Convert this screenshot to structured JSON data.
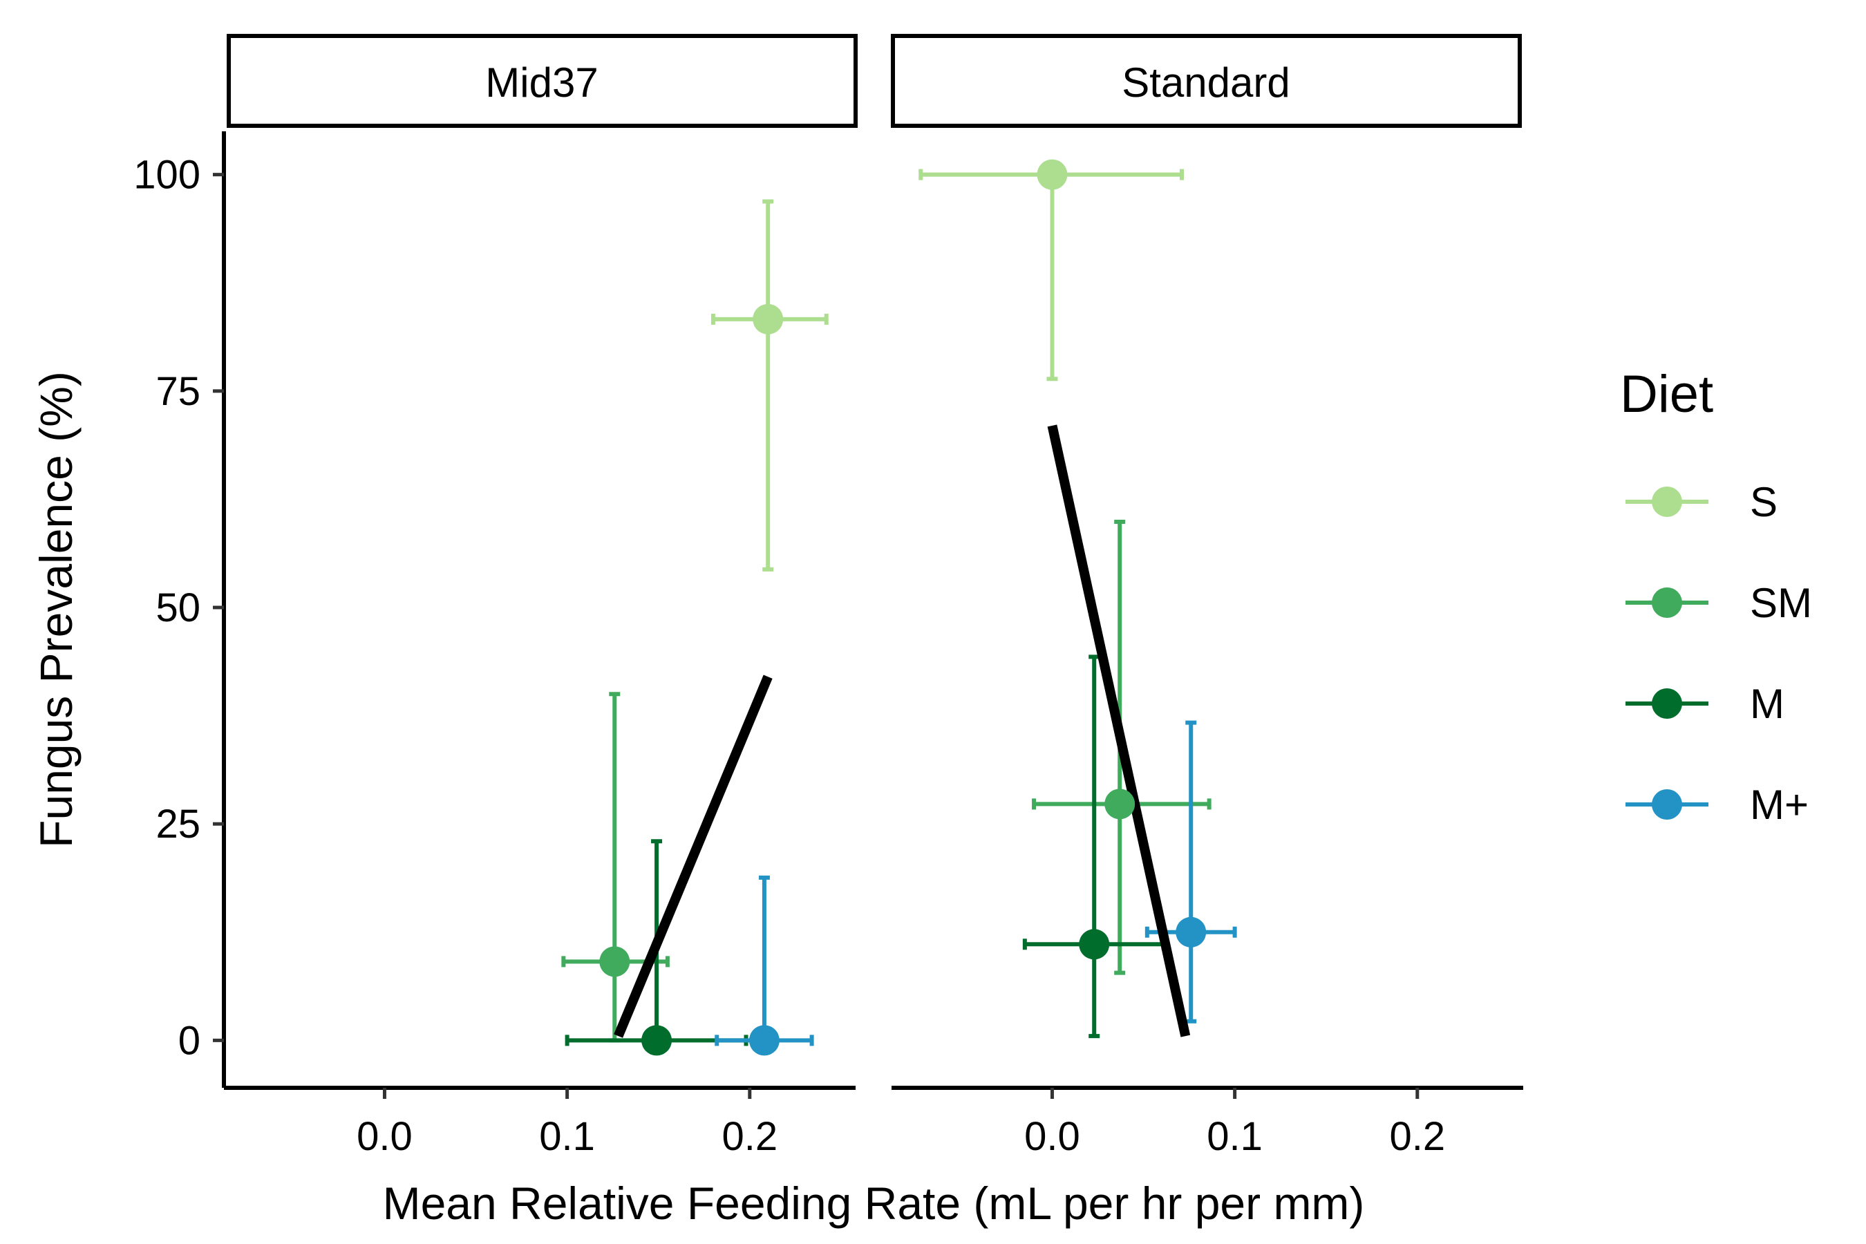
{
  "chart_data": {
    "type": "scatter",
    "xlabel": "Mean Relative Feeding Rate (mL per hr per mm)",
    "ylabel": "Fungus Prevalence (%)",
    "xlim": [
      -0.088,
      0.258
    ],
    "ylim": [
      -5,
      105
    ],
    "x_ticks": [
      "0.0",
      "0.1",
      "0.2"
    ],
    "x_tick_values": [
      0.0,
      0.1,
      0.2
    ],
    "y_ticks": [
      "0",
      "25",
      "50",
      "75",
      "100"
    ],
    "y_tick_values": [
      0,
      25,
      50,
      75,
      100
    ],
    "grid": false,
    "legend": {
      "title": "Diet",
      "position": "right",
      "entries": [
        {
          "key": "S",
          "label": "S",
          "color": "#ADDE8F"
        },
        {
          "key": "SM",
          "label": "SM",
          "color": "#41AB5D"
        },
        {
          "key": "M",
          "label": "M",
          "color": "#006D2C"
        },
        {
          "key": "M+",
          "label": "M+",
          "color": "#2293C4"
        }
      ]
    },
    "panels": [
      {
        "label": "Mid37",
        "points": [
          {
            "diet": "S",
            "x": 0.21,
            "y": 83.3,
            "xmin": 0.18,
            "xmax": 0.242,
            "ymin": 54.4,
            "ymax": 96.9
          },
          {
            "diet": "SM",
            "x": 0.126,
            "y": 9.1,
            "xmin": 0.098,
            "xmax": 0.155,
            "ymin": 0.0,
            "ymax": 40.0
          },
          {
            "diet": "M",
            "x": 0.149,
            "y": 0.0,
            "xmin": 0.1,
            "xmax": 0.198,
            "ymin": 0.0,
            "ymax": 23.0
          },
          {
            "diet": "M+",
            "x": 0.208,
            "y": 0.0,
            "xmin": 0.182,
            "xmax": 0.234,
            "ymin": 0.0,
            "ymax": 18.8
          }
        ],
        "fit": {
          "x": [
            0.128,
            0.21
          ],
          "y": [
            0.5,
            42.0
          ]
        }
      },
      {
        "label": "Standard",
        "points": [
          {
            "diet": "S",
            "x": 0.0,
            "y": 100.0,
            "xmin": -0.072,
            "xmax": 0.071,
            "ymin": 76.4,
            "ymax": 100.0
          },
          {
            "diet": "SM",
            "x": 0.037,
            "y": 27.3,
            "xmin": -0.01,
            "xmax": 0.086,
            "ymin": 7.8,
            "ymax": 59.9
          },
          {
            "diet": "M",
            "x": 0.023,
            "y": 11.1,
            "xmin": -0.015,
            "xmax": 0.061,
            "ymin": 0.5,
            "ymax": 44.3
          },
          {
            "diet": "M+",
            "x": 0.076,
            "y": 12.5,
            "xmin": 0.052,
            "xmax": 0.1,
            "ymin": 2.2,
            "ymax": 36.7
          }
        ],
        "fit": {
          "x": [
            0.0,
            0.073
          ],
          "y": [
            71.0,
            0.5
          ]
        }
      }
    ]
  }
}
